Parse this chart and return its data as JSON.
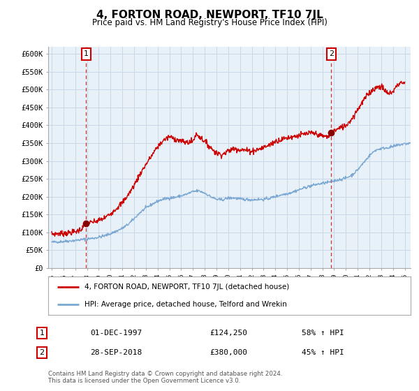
{
  "title": "4, FORTON ROAD, NEWPORT, TF10 7JL",
  "subtitle": "Price paid vs. HM Land Registry's House Price Index (HPI)",
  "ylabel_ticks": [
    "£0",
    "£50K",
    "£100K",
    "£150K",
    "£200K",
    "£250K",
    "£300K",
    "£350K",
    "£400K",
    "£450K",
    "£500K",
    "£550K",
    "£600K"
  ],
  "ytick_values": [
    0,
    50000,
    100000,
    150000,
    200000,
    250000,
    300000,
    350000,
    400000,
    450000,
    500000,
    550000,
    600000
  ],
  "ylim": [
    0,
    620000
  ],
  "xlim_start": 1994.7,
  "xlim_end": 2025.5,
  "marker1_x": 1997.92,
  "marker1_y": 124250,
  "marker1_label": "1",
  "marker1_date": "01-DEC-1997",
  "marker1_price": "£124,250",
  "marker1_hpi": "58% ↑ HPI",
  "marker2_x": 2018.75,
  "marker2_y": 380000,
  "marker2_label": "2",
  "marker2_date": "28-SEP-2018",
  "marker2_price": "£380,000",
  "marker2_hpi": "45% ↑ HPI",
  "red_line_color": "#cc0000",
  "blue_line_color": "#7aa8d2",
  "marker_color": "#880000",
  "grid_color": "#c8d8e8",
  "bg_color": "#ffffff",
  "plot_bg_color": "#e8f0f8",
  "legend_label_red": "4, FORTON ROAD, NEWPORT, TF10 7JL (detached house)",
  "legend_label_blue": "HPI: Average price, detached house, Telford and Wrekin",
  "footnote": "Contains HM Land Registry data © Crown copyright and database right 2024.\nThis data is licensed under the Open Government Licence v3.0.",
  "dashed_line_color": "#cc0000"
}
